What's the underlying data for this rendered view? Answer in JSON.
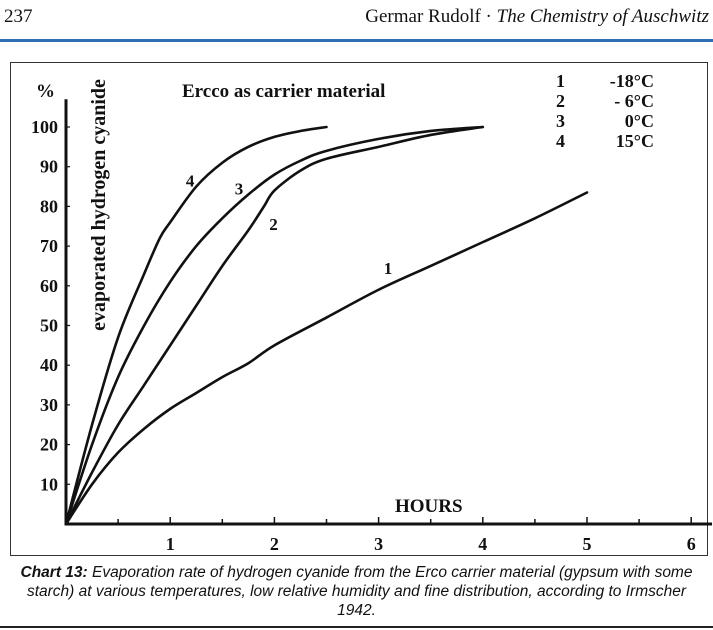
{
  "header": {
    "page_number": "237",
    "author": "Germar Rudolf ·",
    "book_title": "The Chemistry of Auschwitz",
    "rule_color": "#2f6db3"
  },
  "caption": {
    "label": "Chart 13:",
    "text": " Evaporation rate of hydrogen cyanide from the Erco carrier material (gypsum with some starch) at various temperatures, low relative humidity and fine distribution, according to Irmscher 1942."
  },
  "chart_data": {
    "type": "line",
    "title": "Ercco as carrier material",
    "xlabel": "HOURS",
    "ylabel": "evaporated hydrogen cyanide",
    "yunit": "%",
    "xlim": [
      0,
      6.2
    ],
    "ylim": [
      0,
      105
    ],
    "xticks": [
      "1",
      "2",
      "3",
      "4",
      "5",
      "6"
    ],
    "yticks": [
      "10",
      "20",
      "30",
      "40",
      "50",
      "60",
      "70",
      "80",
      "90",
      "100"
    ],
    "grid": false,
    "legend_placement": "top-right",
    "legend": [
      {
        "num": "1",
        "label": "-18°C"
      },
      {
        "num": "2",
        "label": "- 6°C"
      },
      {
        "num": "3",
        "label": "0°C"
      },
      {
        "num": "4",
        "label": "15°C"
      }
    ],
    "series": [
      {
        "name": "1",
        "label_at": [
          3.05,
          63
        ],
        "x": [
          0,
          0.25,
          0.5,
          0.75,
          1,
          1.25,
          1.5,
          1.75,
          2,
          2.5,
          3,
          3.5,
          4,
          4.5,
          5
        ],
        "y": [
          0,
          10,
          18,
          24,
          29,
          33,
          37,
          40.5,
          45,
          52,
          59,
          65,
          71,
          77,
          83.5
        ]
      },
      {
        "name": "2",
        "label_at": [
          1.95,
          74
        ],
        "x": [
          0,
          0.25,
          0.5,
          0.75,
          1,
          1.25,
          1.5,
          1.75,
          1.9,
          2,
          2.25,
          2.5,
          3,
          3.5,
          4
        ],
        "y": [
          0,
          13,
          25,
          35,
          45,
          55,
          65,
          74,
          80,
          84,
          89,
          92,
          95,
          98,
          100
        ]
      },
      {
        "name": "3",
        "label_at": [
          1.62,
          83
        ],
        "x": [
          0,
          0.25,
          0.5,
          0.75,
          1,
          1.25,
          1.5,
          1.75,
          2,
          2.25,
          2.5,
          3,
          3.5,
          4
        ],
        "y": [
          0,
          20,
          37,
          50,
          61,
          70,
          77,
          83,
          88,
          91.5,
          94,
          97,
          99,
          100
        ]
      },
      {
        "name": "4",
        "label_at": [
          1.15,
          85
        ],
        "x": [
          0,
          0.25,
          0.5,
          0.75,
          0.9,
          1,
          1.25,
          1.5,
          1.75,
          2,
          2.25,
          2.5
        ],
        "y": [
          0,
          25,
          47,
          63,
          72,
          76,
          85,
          91,
          95,
          97.5,
          99,
          100
        ]
      }
    ]
  }
}
